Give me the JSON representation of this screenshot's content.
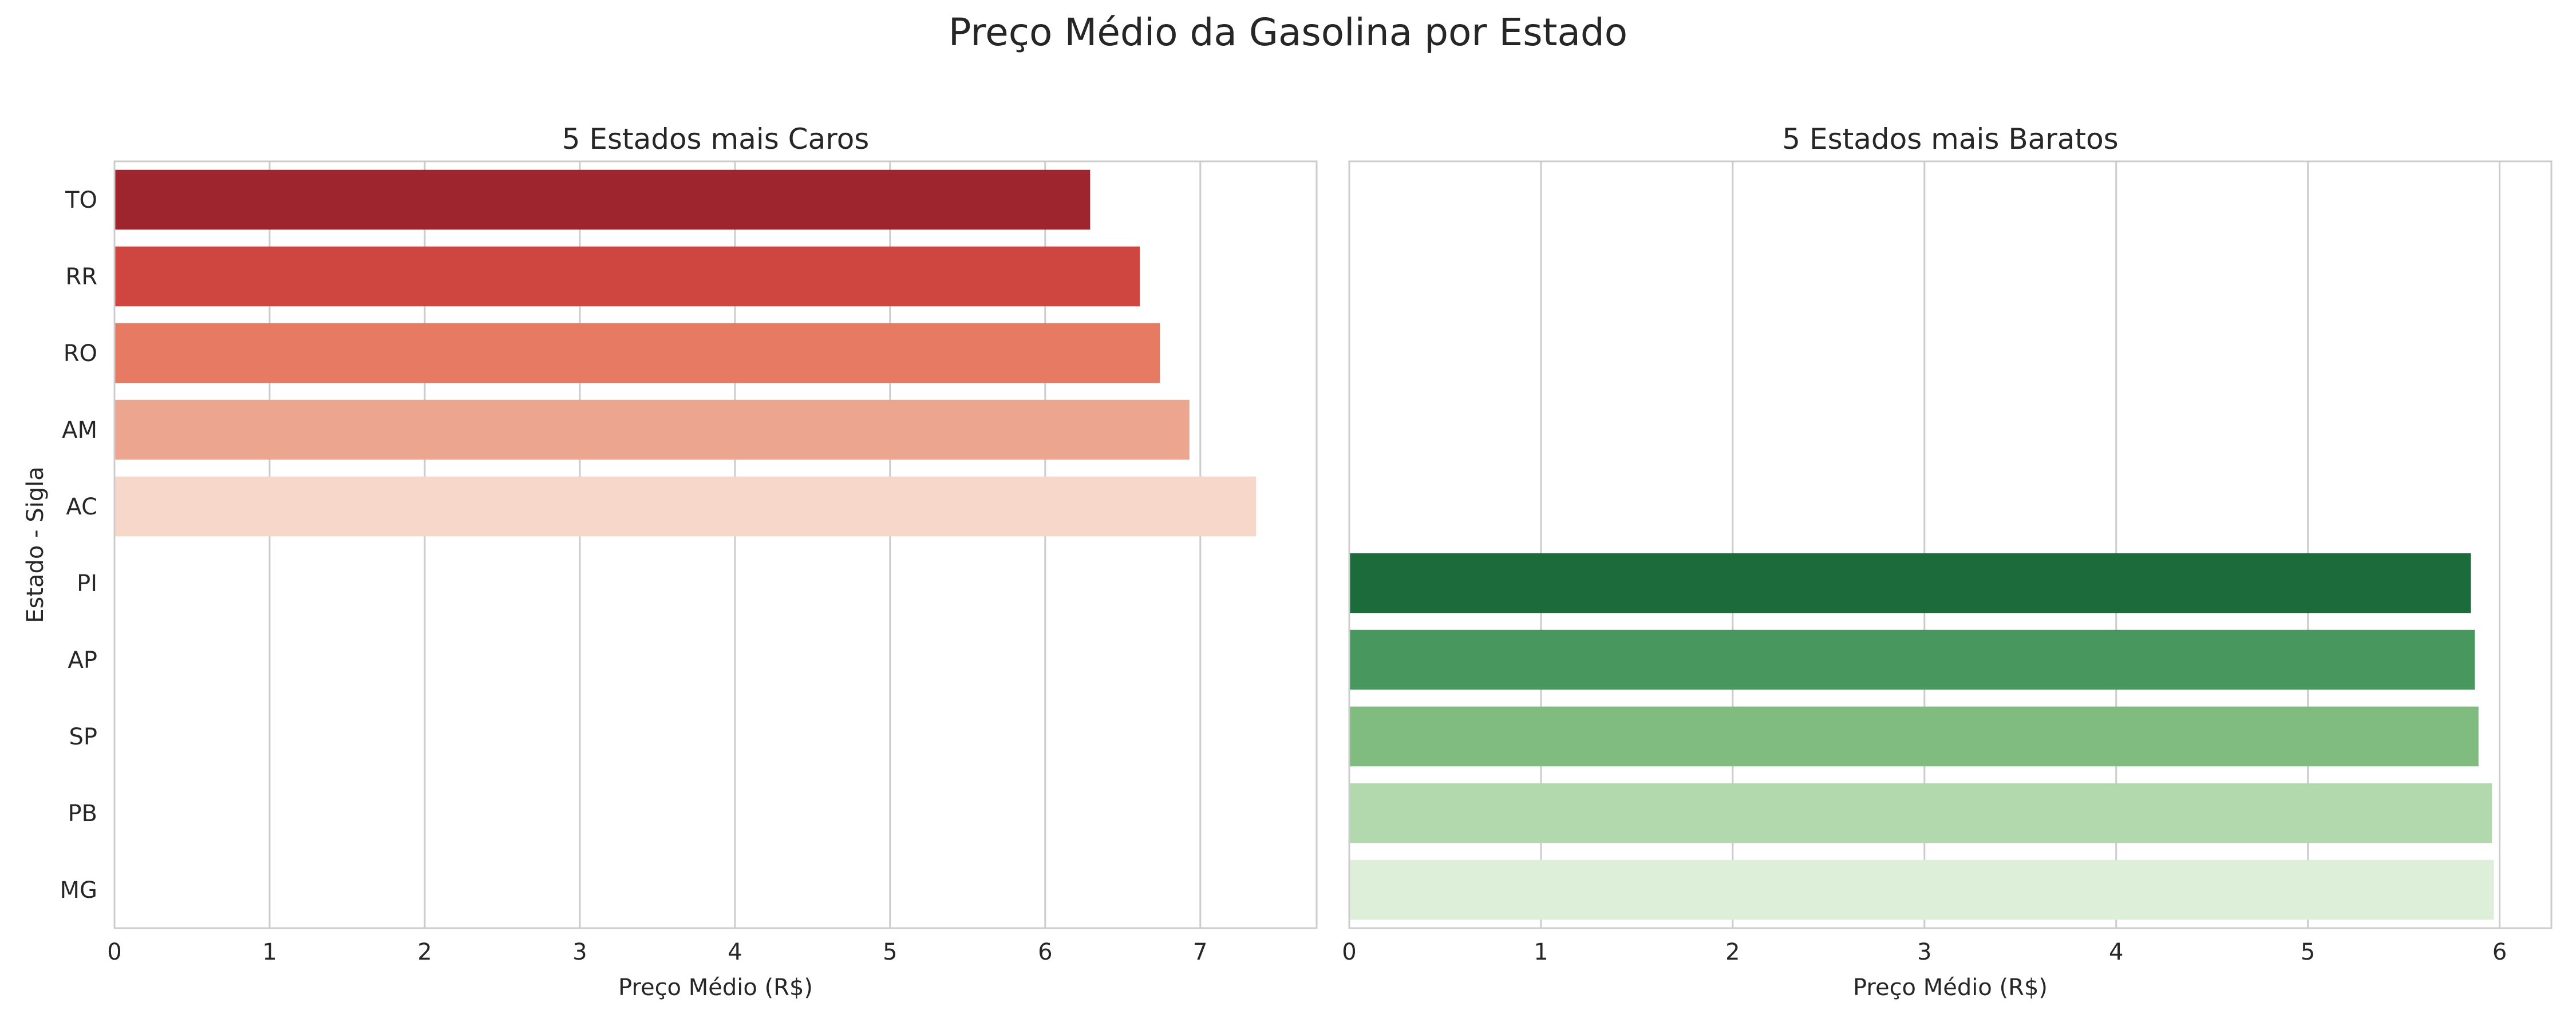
{
  "title": "Preço Médio da Gasolina por Estado",
  "chart_data": [
    {
      "type": "bar",
      "orientation": "horizontal",
      "title": "5 Estados mais Caros",
      "xlabel": "Preço Médio (R$)",
      "ylabel": "Estado - Sigla",
      "categories": [
        "TO",
        "RR",
        "RO",
        "AM",
        "AC",
        "PI",
        "AP",
        "SP",
        "PB",
        "MG"
      ],
      "values": [
        6.29,
        6.61,
        6.74,
        6.93,
        7.36,
        null,
        null,
        null,
        null,
        null
      ],
      "colors": [
        "#9e242d",
        "#cf4540",
        "#e77a63",
        "#eca690",
        "#f7d7ca"
      ],
      "xlim": [
        0,
        7.75
      ],
      "xticks": [
        0,
        1,
        2,
        3,
        4,
        5,
        6,
        7
      ],
      "grid": true
    },
    {
      "type": "bar",
      "orientation": "horizontal",
      "title": "5 Estados mais Baratos",
      "xlabel": "Preço Médio (R$)",
      "ylabel": "",
      "categories": [
        "TO",
        "RR",
        "RO",
        "AM",
        "AC",
        "PI",
        "AP",
        "SP",
        "PB",
        "MG"
      ],
      "values": [
        null,
        null,
        null,
        null,
        null,
        5.85,
        5.87,
        5.89,
        5.96,
        5.97
      ],
      "colors": [
        "#1c6b3b",
        "#47975e",
        "#80bb7f",
        "#b2d9ae",
        "#ddefd8"
      ],
      "xlim": [
        0,
        6.27
      ],
      "xticks": [
        0,
        1,
        2,
        3,
        4,
        5,
        6
      ],
      "grid": true
    }
  ]
}
